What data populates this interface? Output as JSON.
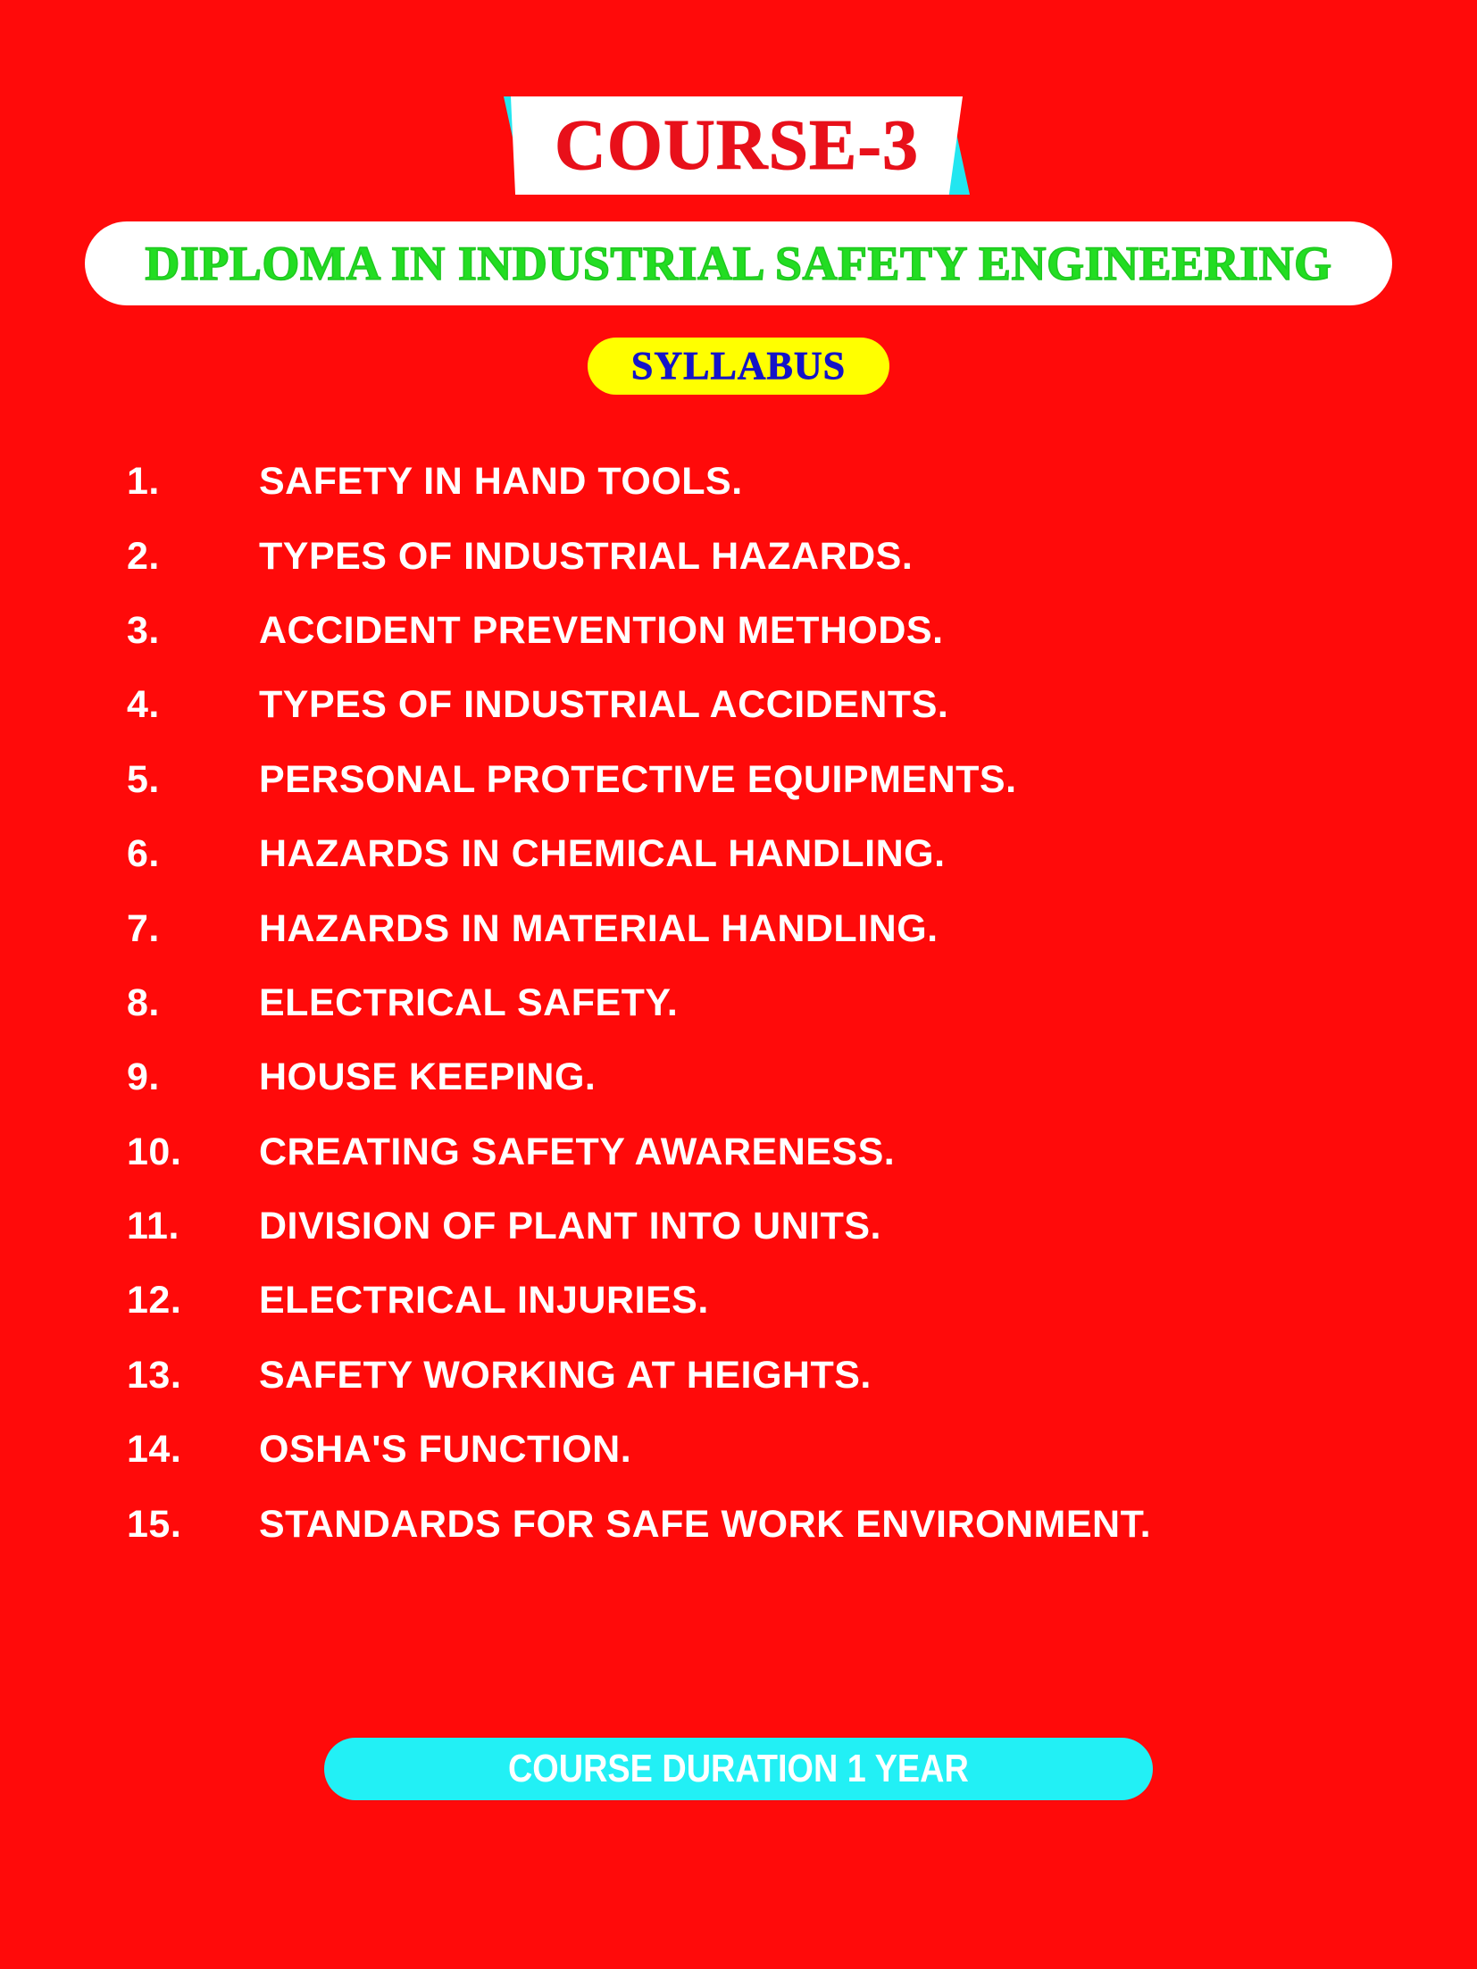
{
  "title": "COURSE-3",
  "diploma": "DIPLOMA IN INDUSTRIAL SAFETY ENGINEERING",
  "syllabus_label": "SYLLABUS",
  "items": [
    {
      "num": "1.",
      "text": "SAFETY IN HAND TOOLS."
    },
    {
      "num": "2.",
      "text": "TYPES OF INDUSTRIAL HAZARDS."
    },
    {
      "num": "3.",
      "text": "ACCIDENT PREVENTION METHODS."
    },
    {
      "num": "4.",
      "text": "TYPES OF INDUSTRIAL ACCIDENTS."
    },
    {
      "num": "5.",
      "text": "PERSONAL PROTECTIVE EQUIPMENTS."
    },
    {
      "num": "6.",
      "text": "HAZARDS IN CHEMICAL HANDLING."
    },
    {
      "num": "7.",
      "text": "HAZARDS IN MATERIAL HANDLING."
    },
    {
      "num": "8.",
      "text": "ELECTRICAL SAFETY."
    },
    {
      "num": "9.",
      "text": "HOUSE KEEPING."
    },
    {
      "num": "10.",
      "text": "CREATING SAFETY AWARENESS."
    },
    {
      "num": "11.",
      "text": "DIVISION OF PLANT INTO UNITS."
    },
    {
      "num": "12.",
      "text": "ELECTRICAL INJURIES."
    },
    {
      "num": "13.",
      "text": "SAFETY WORKING AT HEIGHTS."
    },
    {
      "num": "14.",
      "text": "OSHA'S FUNCTION."
    },
    {
      "num": "15.",
      "text": "STANDARDS FOR SAFE WORK ENVIRONMENT."
    }
  ],
  "duration": "COURSE DURATION 1 YEAR",
  "colors": {
    "background": "#ff0a0a",
    "title_text": "#e8101a",
    "diploma_text": "#22dd22",
    "syllabus_bg": "#ffff00",
    "syllabus_text": "#1414c8",
    "accent_cyan": "#22f0f5",
    "list_text": "#ffffff"
  }
}
